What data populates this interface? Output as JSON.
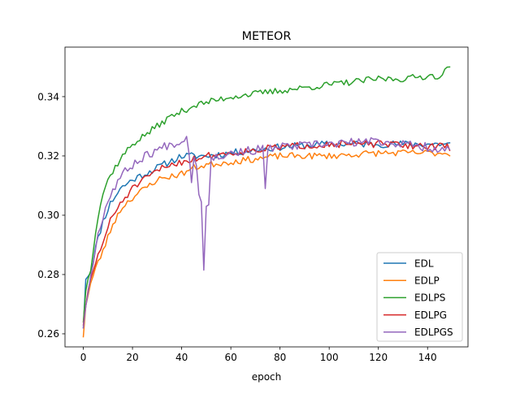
{
  "chart_data": {
    "type": "line",
    "title": "METEOR",
    "xlabel": "epoch",
    "ylabel": "",
    "xlim": [
      -7.45,
      156.45
    ],
    "ylim": [
      0.2556,
      0.3567
    ],
    "xticks": [
      0,
      20,
      40,
      60,
      80,
      100,
      120,
      140
    ],
    "yticks": [
      0.26,
      0.28,
      0.3,
      0.32,
      0.34
    ],
    "ytick_labels": [
      "0.26",
      "0.28",
      "0.30",
      "0.32",
      "0.34"
    ],
    "grid": false,
    "legend_position": "lower-right",
    "colors": {
      "EDL": "#1f77b4",
      "EDLP": "#ff7f0e",
      "EDLPS": "#2ca02c",
      "EDLPG": "#d62728",
      "EDLPGS": "#9467bd"
    },
    "series": [
      {
        "name": "EDL",
        "anchors": [
          [
            0,
            0.262
          ],
          [
            1,
            0.279
          ],
          [
            3,
            0.281
          ],
          [
            5,
            0.289
          ],
          [
            8,
            0.298
          ],
          [
            11,
            0.304
          ],
          [
            15,
            0.309
          ],
          [
            20,
            0.312
          ],
          [
            25,
            0.314
          ],
          [
            30,
            0.316
          ],
          [
            35,
            0.318
          ],
          [
            40,
            0.32
          ],
          [
            50,
            0.32
          ],
          [
            60,
            0.321
          ],
          [
            70,
            0.322
          ],
          [
            80,
            0.323
          ],
          [
            100,
            0.324
          ],
          [
            120,
            0.324
          ],
          [
            149,
            0.324
          ]
        ],
        "noise": 0.0012,
        "seed": 11,
        "spikes": []
      },
      {
        "name": "EDLP",
        "anchors": [
          [
            0,
            0.259
          ],
          [
            1,
            0.27
          ],
          [
            3,
            0.277
          ],
          [
            5,
            0.282
          ],
          [
            8,
            0.288
          ],
          [
            12,
            0.297
          ],
          [
            16,
            0.303
          ],
          [
            20,
            0.306
          ],
          [
            25,
            0.309
          ],
          [
            30,
            0.312
          ],
          [
            35,
            0.313
          ],
          [
            40,
            0.314
          ],
          [
            45,
            0.316
          ],
          [
            50,
            0.317
          ],
          [
            60,
            0.318
          ],
          [
            70,
            0.319
          ],
          [
            80,
            0.32
          ],
          [
            100,
            0.32
          ],
          [
            120,
            0.321
          ],
          [
            149,
            0.321
          ]
        ],
        "noise": 0.0011,
        "seed": 23,
        "spikes": []
      },
      {
        "name": "EDLPS",
        "anchors": [
          [
            0,
            0.264
          ],
          [
            1,
            0.275
          ],
          [
            3,
            0.282
          ],
          [
            5,
            0.295
          ],
          [
            7,
            0.304
          ],
          [
            9,
            0.31
          ],
          [
            12,
            0.315
          ],
          [
            16,
            0.32
          ],
          [
            20,
            0.324
          ],
          [
            25,
            0.327
          ],
          [
            30,
            0.33
          ],
          [
            35,
            0.333
          ],
          [
            40,
            0.335
          ],
          [
            45,
            0.337
          ],
          [
            50,
            0.338
          ],
          [
            55,
            0.339
          ],
          [
            60,
            0.34
          ],
          [
            70,
            0.341
          ],
          [
            80,
            0.342
          ],
          [
            90,
            0.343
          ],
          [
            100,
            0.344
          ],
          [
            110,
            0.345
          ],
          [
            120,
            0.346
          ],
          [
            130,
            0.346
          ],
          [
            140,
            0.347
          ],
          [
            146,
            0.347
          ],
          [
            149,
            0.351
          ]
        ],
        "noise": 0.0011,
        "seed": 37,
        "spikes": []
      },
      {
        "name": "EDLPG",
        "anchors": [
          [
            0,
            0.263
          ],
          [
            1,
            0.27
          ],
          [
            3,
            0.278
          ],
          [
            5,
            0.284
          ],
          [
            8,
            0.291
          ],
          [
            11,
            0.298
          ],
          [
            15,
            0.304
          ],
          [
            20,
            0.309
          ],
          [
            25,
            0.312
          ],
          [
            30,
            0.315
          ],
          [
            35,
            0.317
          ],
          [
            40,
            0.318
          ],
          [
            45,
            0.319
          ],
          [
            50,
            0.32
          ],
          [
            60,
            0.321
          ],
          [
            70,
            0.322
          ],
          [
            80,
            0.323
          ],
          [
            100,
            0.324
          ],
          [
            120,
            0.324
          ],
          [
            149,
            0.323
          ]
        ],
        "noise": 0.0012,
        "seed": 51,
        "spikes": []
      },
      {
        "name": "EDLPGS",
        "anchors": [
          [
            0,
            0.262
          ],
          [
            1,
            0.27
          ],
          [
            3,
            0.279
          ],
          [
            5,
            0.29
          ],
          [
            8,
            0.3
          ],
          [
            11,
            0.307
          ],
          [
            15,
            0.313
          ],
          [
            20,
            0.317
          ],
          [
            25,
            0.32
          ],
          [
            30,
            0.322
          ],
          [
            35,
            0.324
          ],
          [
            40,
            0.325
          ],
          [
            42,
            0.326
          ],
          [
            43,
            0.322
          ],
          [
            46,
            0.318
          ],
          [
            50,
            0.318
          ],
          [
            55,
            0.32
          ],
          [
            60,
            0.321
          ],
          [
            70,
            0.322
          ],
          [
            80,
            0.323
          ],
          [
            100,
            0.324
          ],
          [
            120,
            0.325
          ],
          [
            149,
            0.322
          ]
        ],
        "noise": 0.0015,
        "seed": 67,
        "spikes": [
          [
            44,
            0.311
          ],
          [
            47,
            0.307
          ],
          [
            48,
            0.3045
          ],
          [
            49,
            0.2815
          ],
          [
            50,
            0.303
          ],
          [
            51,
            0.3035
          ],
          [
            74,
            0.309
          ]
        ]
      }
    ]
  }
}
